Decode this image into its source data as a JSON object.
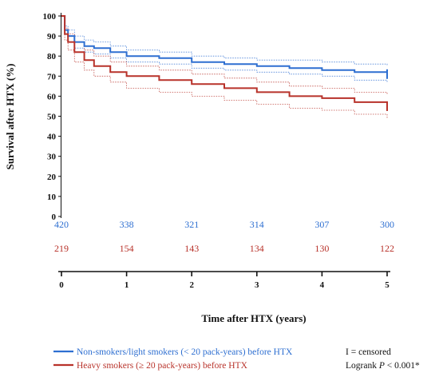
{
  "chart_data": {
    "type": "line",
    "xlabel": "Time after HTX (years)",
    "ylabel": "Survival after HTX (%)",
    "xlim": [
      0,
      5
    ],
    "ylim": [
      0,
      100
    ],
    "x_ticks": [
      "0",
      "1",
      "2",
      "3",
      "4",
      "5"
    ],
    "y_ticks": [
      "0",
      "10",
      "20",
      "30",
      "40",
      "50",
      "60",
      "70",
      "80",
      "90",
      "100"
    ],
    "grid": false,
    "series": [
      {
        "name": "Non-smokers/light smokers (< 20 pack-years) before HTX",
        "color": "#2e6fd1",
        "x": [
          0,
          0.05,
          0.1,
          0.2,
          0.35,
          0.5,
          0.75,
          1.0,
          1.5,
          2.0,
          2.5,
          3.0,
          3.5,
          4.0,
          4.5,
          5.0
        ],
        "y": [
          100,
          93,
          90,
          87,
          85,
          84,
          82,
          80,
          79,
          77,
          76,
          75,
          74,
          73,
          72,
          71
        ],
        "ci_upper": [
          100,
          95,
          93,
          90,
          88,
          87,
          85,
          83,
          82,
          80,
          79,
          78,
          78,
          77,
          76,
          75
        ],
        "ci_lower": [
          100,
          91,
          87,
          84,
          82,
          81,
          79,
          77,
          76,
          74,
          73,
          72,
          71,
          70,
          68,
          67
        ],
        "at_risk": [
          420,
          338,
          321,
          314,
          307,
          300
        ]
      },
      {
        "name": "Heavy smokers (≥ 20 pack-years) before HTX",
        "color": "#b8322a",
        "x": [
          0,
          0.05,
          0.1,
          0.2,
          0.35,
          0.5,
          0.75,
          1.0,
          1.5,
          2.0,
          2.5,
          3.0,
          3.5,
          4.0,
          4.5,
          5.0
        ],
        "y": [
          100,
          91,
          87,
          82,
          78,
          75,
          72,
          70,
          68,
          66,
          64,
          62,
          60,
          59,
          57,
          55
        ],
        "ci_upper": [
          100,
          94,
          91,
          87,
          83,
          80,
          77,
          75,
          73,
          71,
          69,
          67,
          65,
          64,
          62,
          61
        ],
        "ci_lower": [
          100,
          88,
          83,
          77,
          73,
          70,
          67,
          64,
          62,
          60,
          58,
          56,
          54,
          53,
          51,
          49
        ],
        "at_risk": [
          219,
          154,
          143,
          134,
          130,
          122
        ]
      }
    ],
    "annotations": {
      "censored_note": "I = censored",
      "logrank_prefix": "Logrank ",
      "logrank_p": "P",
      "logrank_suffix": " < 0.001*"
    }
  }
}
